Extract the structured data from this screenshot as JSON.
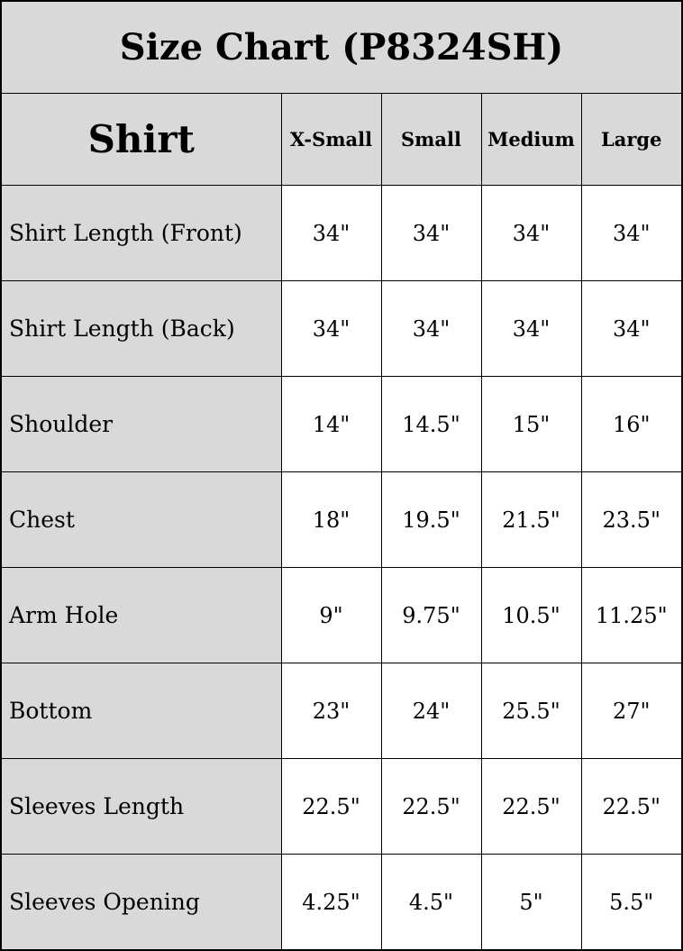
{
  "title": "Size Chart (P8324SH)",
  "header": {
    "section": "Shirt",
    "sizes": [
      "X-Small",
      "Small",
      "Medium",
      "Large"
    ]
  },
  "rows": [
    {
      "label": "Shirt Length (Front)",
      "values": [
        "34\"",
        "34\"",
        "34\"",
        "34\""
      ]
    },
    {
      "label": "Shirt Length (Back)",
      "values": [
        "34\"",
        "34\"",
        "34\"",
        "34\""
      ]
    },
    {
      "label": "Shoulder",
      "values": [
        "14\"",
        "14.5\"",
        "15\"",
        "16\""
      ]
    },
    {
      "label": "Chest",
      "values": [
        "18\"",
        "19.5\"",
        "21.5\"",
        "23.5\""
      ]
    },
    {
      "label": "Arm Hole",
      "values": [
        "9\"",
        "9.75\"",
        "10.5\"",
        "11.25\""
      ]
    },
    {
      "label": "Bottom",
      "values": [
        "23\"",
        "24\"",
        "25.5\"",
        "27\""
      ]
    },
    {
      "label": "Sleeves Length",
      "values": [
        "22.5\"",
        "22.5\"",
        "22.5\"",
        "22.5\""
      ]
    },
    {
      "label": "Sleeves Opening",
      "values": [
        "4.25\"",
        "4.5\"",
        "5\"",
        "5.5\""
      ]
    }
  ],
  "colors": {
    "header_bg": "#d9d9d9",
    "cell_bg": "#ffffff",
    "border": "#000000"
  }
}
